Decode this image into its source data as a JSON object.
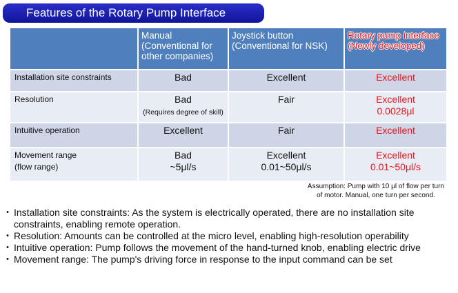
{
  "title": "Features of the Rotary Pump Interface",
  "table": {
    "headers": [
      {
        "line1": "Manual",
        "line2": "(Conventional for other companies)"
      },
      {
        "line1": "Joystick button",
        "line2": "(Conventional for NSK)"
      },
      {
        "line1": "Rotary pump interface",
        "line2": "(Newly developed)"
      }
    ],
    "rows": [
      {
        "label": "Installation site constraints",
        "manual": "Bad",
        "joystick": "Excellent",
        "rotary": "Excellent"
      },
      {
        "label": "Resolution",
        "manual": "Bad",
        "manual_note": "(Requires degree of skill)",
        "joystick": "Fair",
        "rotary": "Excellent",
        "rotary_note": "0.0028μl"
      },
      {
        "label": "Intuitive operation",
        "manual": "Excellent",
        "joystick": "Fair",
        "rotary": "Excellent"
      },
      {
        "label": "Movement range",
        "label2": "(flow range)",
        "manual": "Bad",
        "manual_note": "~5μl/s",
        "joystick": "Excellent",
        "joystick_note": "0.01~50μl/s",
        "rotary": "Excellent",
        "rotary_note": "0.01~50μl/s"
      }
    ]
  },
  "note": {
    "line1": "Assumption: Pump with 10 μl of flow per turn",
    "line2": "of motor. Manual, one turn per second."
  },
  "bullets": [
    "Installation site constraints: As the system is electrically operated, there are no installation site constraints, enabling remote operation.",
    "Resolution: Amounts can be controlled at the micro level, enabling high-resolution operability",
    "Intuitive operation: Pump follows the movement of the hand-turned knob, enabling electric drive",
    "Movement range: The pump's driving force in response to the input command can be set"
  ]
}
